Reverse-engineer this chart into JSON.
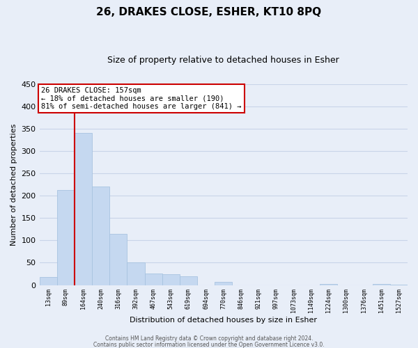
{
  "title_line1": "26, DRAKES CLOSE, ESHER, KT10 8PQ",
  "title_line2": "Size of property relative to detached houses in Esher",
  "xlabel": "Distribution of detached houses by size in Esher",
  "ylabel": "Number of detached properties",
  "bar_labels": [
    "13sqm",
    "89sqm",
    "164sqm",
    "240sqm",
    "316sqm",
    "392sqm",
    "467sqm",
    "543sqm",
    "619sqm",
    "694sqm",
    "770sqm",
    "846sqm",
    "921sqm",
    "997sqm",
    "1073sqm",
    "1149sqm",
    "1224sqm",
    "1300sqm",
    "1376sqm",
    "1451sqm",
    "1527sqm"
  ],
  "bar_values": [
    18,
    213,
    340,
    220,
    115,
    51,
    26,
    25,
    20,
    0,
    7,
    0,
    0,
    0,
    0,
    0,
    2,
    0,
    0,
    2,
    1
  ],
  "bar_color": "#c5d8f0",
  "bar_edge_color": "#a8c4e0",
  "ylim": [
    0,
    450
  ],
  "yticks": [
    0,
    50,
    100,
    150,
    200,
    250,
    300,
    350,
    400,
    450
  ],
  "grid_color": "#c8d4e8",
  "bg_color": "#e8eef8",
  "vline_x_index": 2,
  "vline_color": "#cc0000",
  "annotation_title": "26 DRAKES CLOSE: 157sqm",
  "annotation_line2": "← 18% of detached houses are smaller (190)",
  "annotation_line3": "81% of semi-detached houses are larger (841) →",
  "annotation_box_color": "#ffffff",
  "annotation_border_color": "#cc0000",
  "footer_line1": "Contains HM Land Registry data © Crown copyright and database right 2024.",
  "footer_line2": "Contains public sector information licensed under the Open Government Licence v3.0."
}
